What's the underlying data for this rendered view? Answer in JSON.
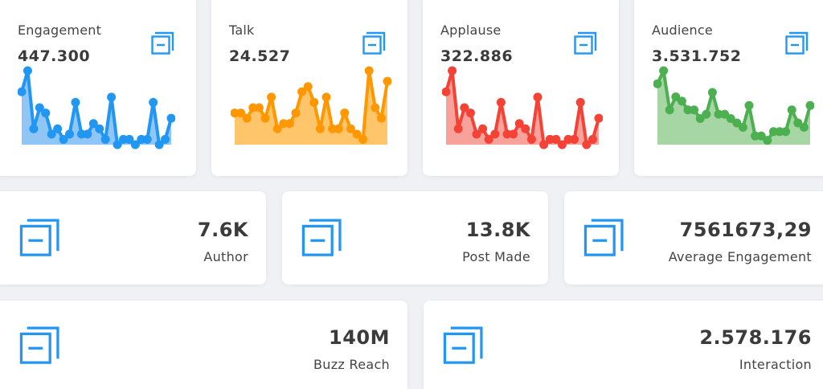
{
  "colors": {
    "accent_icon": "#2196f3",
    "background": "#f0f1f4",
    "card": "#ffffff"
  },
  "icons": {
    "metric": "copy-icon"
  },
  "sparkcards": [
    {
      "title": "Engagement",
      "value": "447.300",
      "color": "#2196f3",
      "fill": "#90c6f5",
      "data": [
        10,
        14,
        3,
        7,
        6,
        2,
        3,
        1,
        2,
        8,
        2,
        2,
        4,
        3,
        1,
        9,
        0,
        1,
        1,
        0,
        1,
        1,
        8,
        0,
        1,
        5
      ]
    },
    {
      "title": "Talk",
      "value": "24.527",
      "color": "#ff9800",
      "fill": "#ffc56b",
      "data": [
        6,
        6,
        5,
        7,
        7,
        5,
        9,
        3,
        4,
        4,
        6,
        10,
        11,
        8,
        3,
        9,
        3,
        3,
        6,
        3,
        2,
        1,
        14,
        7,
        5,
        12
      ]
    },
    {
      "title": "Applause",
      "value": "322.886",
      "color": "#f44336",
      "fill": "#f7a29b",
      "data": [
        10,
        14,
        3,
        7,
        6,
        2,
        3,
        1,
        2,
        8,
        2,
        2,
        4,
        3,
        1,
        9,
        0,
        1,
        1,
        0,
        1,
        1,
        8,
        0,
        1,
        5
      ]
    },
    {
      "title": "Audience",
      "value": "3.531.752",
      "color": "#4caf50",
      "fill": "#a5d6a4",
      "data": [
        14,
        17,
        8,
        11,
        10,
        8,
        8,
        6,
        7,
        12,
        7,
        7,
        6,
        5,
        4,
        9,
        2,
        2,
        1,
        3,
        3,
        3,
        8,
        5,
        4,
        9
      ]
    }
  ],
  "stats_row2": [
    {
      "value": "7.6K",
      "label": "Author"
    },
    {
      "value": "13.8K",
      "label": "Post Made"
    },
    {
      "value": "7561673,29",
      "label": "Average Engagement"
    }
  ],
  "stats_row3": [
    {
      "value": "140M",
      "label": "Buzz Reach"
    },
    {
      "value": "2.578.176",
      "label": "Interaction"
    }
  ]
}
